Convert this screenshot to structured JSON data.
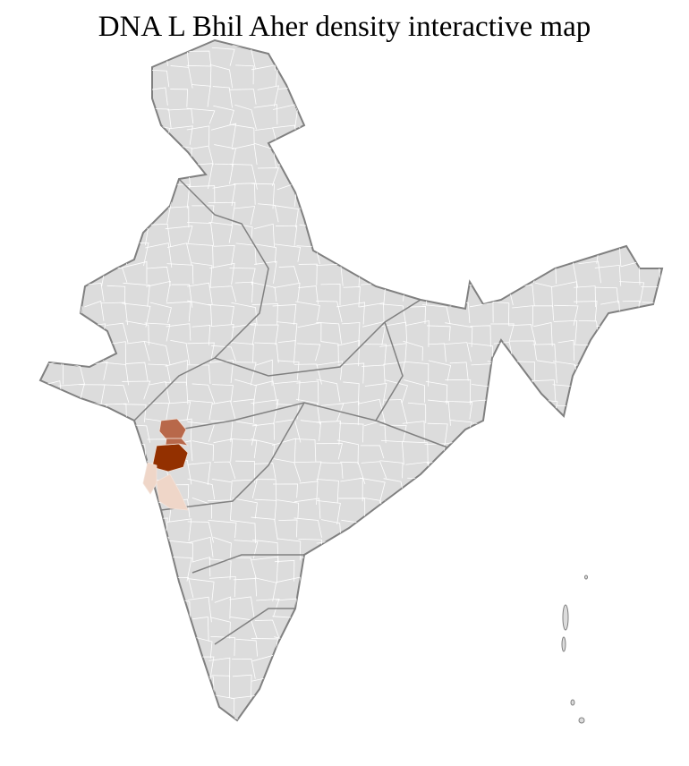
{
  "title": "DNA L Bhil Aher density interactive map",
  "colors": {
    "base_fill": "#dcdcdc",
    "state_border": "#808080",
    "district_border": "#ffffff",
    "density_high": "#933000",
    "density_medium": "#b8684a",
    "density_low": "#efd6c8"
  },
  "highlighted_regions": [
    {
      "level": "high"
    },
    {
      "level": "medium"
    },
    {
      "level": "medium"
    },
    {
      "level": "low"
    },
    {
      "level": "low"
    }
  ]
}
